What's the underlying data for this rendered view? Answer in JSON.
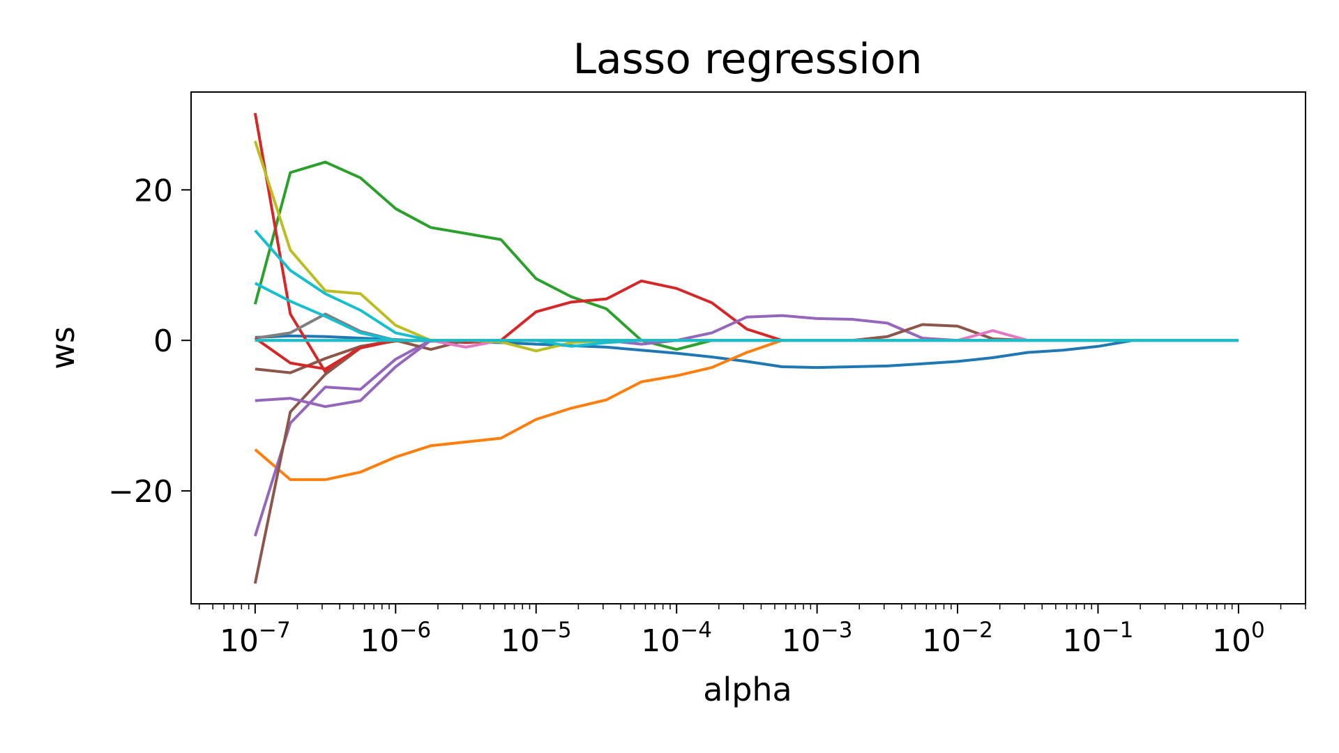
{
  "chart_data": {
    "type": "line",
    "title": "Lasso regression",
    "xlabel": "alpha",
    "ylabel": "ws",
    "xscale": "log",
    "xlim": [
      3.5e-08,
      3.0
    ],
    "ylim": [
      -35,
      33
    ],
    "grid": false,
    "legend": "none",
    "x_ticks": [
      {
        "base": "10",
        "exp": "−7",
        "value": 1e-07
      },
      {
        "base": "10",
        "exp": "−6",
        "value": 1e-06
      },
      {
        "base": "10",
        "exp": "−5",
        "value": 1e-05
      },
      {
        "base": "10",
        "exp": "−4",
        "value": 0.0001
      },
      {
        "base": "10",
        "exp": "−3",
        "value": 0.001
      },
      {
        "base": "10",
        "exp": "−2",
        "value": 0.01
      },
      {
        "base": "10",
        "exp": "−1",
        "value": 0.1
      },
      {
        "base": "10",
        "exp": "0",
        "value": 1
      }
    ],
    "y_ticks": [
      {
        "label": "20",
        "value": 20
      },
      {
        "label": "0",
        "value": 0
      },
      {
        "label": "−20",
        "value": -20
      }
    ],
    "x": [
      1e-07,
      1.78e-07,
      3.16e-07,
      5.62e-07,
      1e-06,
      1.78e-06,
      3.16e-06,
      5.62e-06,
      1e-05,
      1.78e-05,
      3.16e-05,
      5.62e-05,
      0.0001,
      0.000178,
      0.000316,
      0.000562,
      0.001,
      0.00178,
      0.00316,
      0.00562,
      0.01,
      0.0178,
      0.0316,
      0.0562,
      0.1,
      0.178,
      0.316,
      0.562,
      1
    ],
    "series": [
      {
        "color": "#1f77b4",
        "values": [
          0.4,
          0.6,
          0.5,
          0.3,
          0.1,
          -0.1,
          -0.2,
          -0.3,
          -0.5,
          -0.7,
          -0.9,
          -1.3,
          -1.7,
          -2.2,
          -2.8,
          -3.5,
          -3.6,
          -3.5,
          -3.4,
          -3.1,
          -2.8,
          -2.3,
          -1.6,
          -1.3,
          -0.8,
          0,
          0,
          0,
          0
        ]
      },
      {
        "color": "#ff7f0e",
        "values": [
          -14.5,
          -18.5,
          -18.5,
          -17.5,
          -15.5,
          -14.0,
          -13.5,
          -13.0,
          -10.5,
          -9.0,
          -7.9,
          -5.5,
          -4.7,
          -3.6,
          -1.6,
          0,
          0,
          0,
          0,
          0,
          0,
          0,
          0,
          0,
          0,
          0,
          0,
          0,
          0
        ]
      },
      {
        "color": "#2ca02c",
        "values": [
          4.8,
          22.3,
          23.7,
          21.6,
          17.5,
          15.0,
          14.2,
          13.4,
          8.2,
          5.8,
          4.2,
          0,
          -1.2,
          0,
          0,
          0,
          0,
          0,
          0,
          0,
          0,
          0,
          0,
          0,
          0,
          0,
          0,
          0,
          0
        ]
      },
      {
        "color": "#d62728",
        "values": [
          30.2,
          3.5,
          -4.2,
          -0.8,
          0,
          0,
          -0.3,
          0,
          3.8,
          5.1,
          5.5,
          7.9,
          6.9,
          5.0,
          1.5,
          0,
          0,
          0,
          0,
          0,
          0,
          0,
          0,
          0,
          0,
          0,
          0,
          0,
          0
        ]
      },
      {
        "color": "#9467bd",
        "values": [
          -26.0,
          -11.0,
          -6.2,
          -6.5,
          -2.5,
          0,
          0,
          0,
          0,
          0,
          0,
          -0.5,
          0,
          1.0,
          3.1,
          3.3,
          2.9,
          2.8,
          2.3,
          0.3,
          0,
          0,
          0,
          0,
          0,
          0,
          0,
          0,
          0
        ]
      },
      {
        "color": "#8c564b",
        "values": [
          -32.3,
          -9.5,
          -4.5,
          -1.0,
          0,
          -1.2,
          0,
          0,
          0,
          0,
          0,
          0,
          0,
          0,
          0,
          0,
          0,
          0,
          0.5,
          2.1,
          1.9,
          0.2,
          0,
          0,
          0,
          0,
          0,
          0,
          0
        ]
      },
      {
        "color": "#e377c2",
        "values": [
          0,
          0,
          0,
          0,
          0,
          0,
          -0.9,
          0,
          0,
          0,
          0,
          0,
          0,
          0,
          0,
          0,
          0,
          0,
          0,
          0,
          0,
          1.3,
          0,
          0,
          0,
          0,
          0,
          0,
          0
        ]
      },
      {
        "color": "#7f7f7f",
        "values": [
          0.3,
          1.0,
          3.5,
          1.2,
          0,
          0,
          0,
          0,
          0,
          0,
          0,
          0,
          0,
          0,
          0,
          0,
          0,
          0,
          0,
          0,
          0,
          0,
          0,
          0,
          0,
          0,
          0,
          0,
          0
        ]
      },
      {
        "color": "#bcbd22",
        "values": [
          26.5,
          12.0,
          6.6,
          6.2,
          2.0,
          0,
          0,
          -0.2,
          -1.4,
          -0.3,
          0,
          0,
          0,
          0,
          0,
          0,
          0,
          0,
          0,
          0,
          0,
          0,
          0,
          0,
          0,
          0,
          0,
          0,
          0
        ]
      },
      {
        "color": "#17becf",
        "values": [
          14.6,
          9.3,
          6.2,
          4.0,
          1.0,
          0,
          0,
          0,
          0,
          -0.8,
          -0.3,
          0,
          0,
          0,
          0,
          0,
          0,
          0,
          0,
          0,
          0,
          0,
          0,
          0,
          0,
          0,
          0,
          0,
          0
        ]
      },
      {
        "color": "#9467bd",
        "values": [
          -8.0,
          -7.7,
          -8.8,
          -8.0,
          -3.5,
          0,
          0,
          0,
          0,
          0,
          0,
          0,
          0,
          0,
          0,
          0,
          0,
          0,
          0,
          0,
          0,
          0,
          0,
          0,
          0,
          0,
          0,
          0,
          0
        ]
      },
      {
        "color": "#8c564b",
        "values": [
          -3.8,
          -4.3,
          -2.4,
          -0.8,
          -0.1,
          0,
          0,
          0,
          0,
          0,
          0,
          0,
          0,
          0,
          0,
          0,
          0,
          0,
          0,
          0,
          0,
          0,
          0,
          0,
          0,
          0,
          0,
          0,
          0
        ]
      },
      {
        "color": "#d62728",
        "values": [
          0.3,
          -3.0,
          -3.8,
          -1.0,
          0,
          0,
          0,
          0,
          0,
          0,
          0,
          0,
          0,
          0,
          0,
          0,
          0,
          0,
          0,
          0,
          0,
          0,
          0,
          0,
          0,
          0,
          0,
          0,
          0
        ]
      },
      {
        "color": "#17becf",
        "values": [
          7.6,
          5.2,
          3.2,
          1.0,
          0,
          0,
          0,
          0,
          0,
          0,
          0,
          0,
          0,
          0,
          0,
          0,
          0,
          0,
          0,
          0,
          0,
          0,
          0,
          0,
          0,
          0,
          0,
          0,
          0
        ]
      },
      {
        "color": "#bcbd22",
        "values": [
          0,
          0,
          0,
          0,
          0,
          0,
          0,
          0,
          0,
          0,
          0,
          0,
          0,
          0,
          0,
          0,
          0,
          0,
          0,
          0,
          0,
          0,
          0,
          0,
          0,
          0,
          0,
          0,
          0
        ]
      },
      {
        "color": "#17becf",
        "values": [
          0,
          0,
          0,
          0,
          0,
          0,
          0,
          0,
          0,
          0,
          0,
          0,
          0,
          0,
          0,
          0,
          0,
          0,
          0,
          0,
          0,
          0,
          0,
          0,
          0,
          0,
          0,
          0,
          0
        ]
      }
    ]
  }
}
